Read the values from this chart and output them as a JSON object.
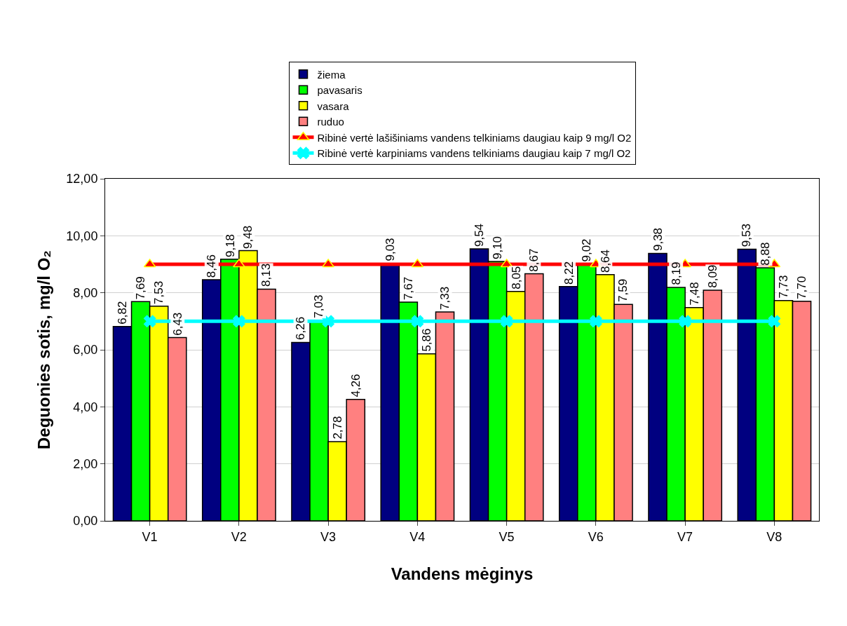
{
  "chart_data": {
    "type": "bar",
    "xlabel": "Vandens mėginys",
    "ylabel": "Deguonies sotis, mg/l O₂",
    "categories": [
      "V1",
      "V2",
      "V3",
      "V4",
      "V5",
      "V6",
      "V7",
      "V8"
    ],
    "series": [
      {
        "name": "žiema",
        "color": "#000080",
        "values": [
          6.82,
          8.46,
          6.26,
          9.03,
          9.54,
          8.22,
          9.38,
          9.53
        ],
        "value_labels": [
          "6,82",
          "8,46",
          "6,26",
          "9,03",
          "9,54",
          "8,22",
          "9,38",
          "9,53"
        ]
      },
      {
        "name": "pavasaris",
        "color": "#00ff00",
        "values": [
          7.69,
          9.18,
          7.03,
          7.67,
          9.1,
          9.02,
          8.19,
          8.88
        ],
        "value_labels": [
          "7,69",
          "9,18",
          "7,03",
          "7,67",
          "9,10",
          "9,02",
          "8,19",
          "8,88"
        ]
      },
      {
        "name": "vasara",
        "color": "#ffff00",
        "values": [
          7.53,
          9.48,
          2.78,
          5.86,
          8.05,
          8.64,
          7.48,
          7.73
        ],
        "value_labels": [
          "7,53",
          "9,48",
          "2,78",
          "5,86",
          "8,05",
          "8,64",
          "7,48",
          "7,73"
        ]
      },
      {
        "name": "ruduo",
        "color": "#ff8080",
        "values": [
          6.43,
          8.13,
          4.26,
          7.33,
          8.67,
          7.59,
          8.09,
          7.7
        ],
        "value_labels": [
          "6,43",
          "8,13",
          "4,26",
          "7,33",
          "8,67",
          "7,59",
          "8,09",
          "7,70"
        ]
      },
      {
        "name": "Ribinė vertė lašišiniams vandens telkiniams daugiau kaip 9 mg/l O2",
        "type": "line",
        "color": "#ff0000",
        "marker": "triangle",
        "values": [
          9,
          9,
          9,
          9,
          9,
          9,
          9,
          9
        ]
      },
      {
        "name": "Ribinė vertė karpiniams vandens telkiniams daugiau kaip 7 mg/l O2",
        "type": "line",
        "color": "#00ffff",
        "marker": "cross",
        "values": [
          7,
          7,
          7,
          7,
          7,
          7,
          7,
          7
        ]
      }
    ],
    "ylim": [
      0,
      12
    ],
    "yticks": [
      {
        "value": 0,
        "label": "0,00"
      },
      {
        "value": 2,
        "label": "2,00"
      },
      {
        "value": 4,
        "label": "4,00"
      },
      {
        "value": 6,
        "label": "6,00"
      },
      {
        "value": 8,
        "label": "8,00"
      },
      {
        "value": 10,
        "label": "10,00"
      },
      {
        "value": 12,
        "label": "12,00"
      }
    ],
    "grid": "y",
    "legend": "top"
  }
}
